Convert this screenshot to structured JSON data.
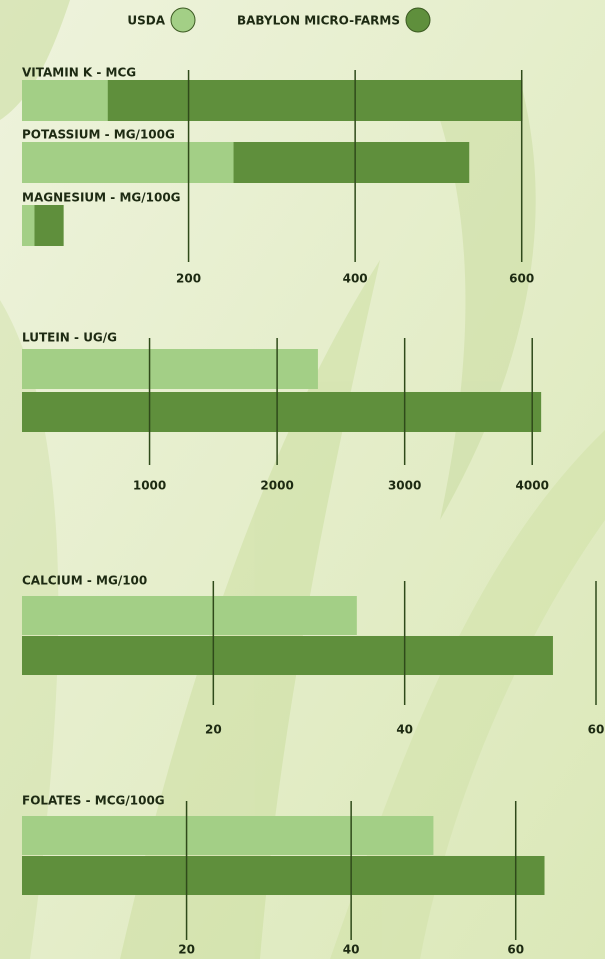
{
  "legend": [
    {
      "name": "USDA",
      "color": "#a3cf86"
    },
    {
      "name": "BABYLON MICRO-FARMS",
      "color": "#5f8f3c"
    }
  ],
  "chart_data": [
    {
      "type": "bar",
      "categories": [
        "VITAMIN K - MCG",
        "POTASSIUM - MG/100G",
        "MAGNESIUM - MG/100G"
      ],
      "series": [
        {
          "values": [
            103,
            254,
            15
          ]
        },
        {
          "values": [
            601,
            537,
            50
          ]
        }
      ],
      "xlim": [
        0,
        700
      ],
      "xticks": [
        200,
        400,
        600
      ],
      "overlap": true
    },
    {
      "type": "bar",
      "categories": [
        "LUTEIN - UG/G"
      ],
      "series": [
        {
          "values": [
            2320
          ]
        },
        {
          "values": [
            4070
          ]
        }
      ],
      "xlim": [
        0,
        4500
      ],
      "xticks": [
        1000,
        2000,
        3000,
        4000
      ],
      "overlap": false
    },
    {
      "type": "bar",
      "categories": [
        "CALCIUM - MG/100"
      ],
      "series": [
        {
          "values": [
            35
          ]
        },
        {
          "values": [
            55.5
          ]
        }
      ],
      "xlim": [
        0,
        60
      ],
      "xticks": [
        20,
        40,
        60
      ],
      "overlap": false
    },
    {
      "type": "bar",
      "categories": [
        "FOLATES - MCG/100G"
      ],
      "series": [
        {
          "values": [
            50
          ]
        },
        {
          "values": [
            63.5
          ]
        }
      ],
      "xlim": [
        0,
        70
      ],
      "xticks": [
        20,
        40,
        60
      ],
      "overlap": false
    }
  ]
}
